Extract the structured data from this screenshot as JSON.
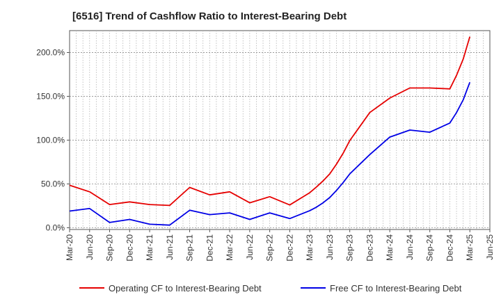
{
  "chart_data": {
    "type": "line",
    "title": "[6516]  Trend of Cashflow Ratio to Interest-Bearing Debt",
    "xlabel": "",
    "ylabel": "",
    "x_ticks": [
      "Mar-20",
      "Jun-20",
      "Sep-20",
      "Dec-20",
      "Mar-21",
      "Jun-21",
      "Sep-21",
      "Dec-21",
      "Mar-22",
      "Jun-22",
      "Sep-22",
      "Dec-22",
      "Mar-23",
      "Jun-23",
      "Sep-23",
      "Dec-23",
      "Mar-24",
      "Jun-24",
      "Sep-24",
      "Dec-24",
      "Mar-25",
      "Jun-25"
    ],
    "y_ticks": [
      0,
      50,
      100,
      150,
      200
    ],
    "y_tick_labels": [
      "0.0%",
      "50.0%",
      "100.0%",
      "150.0%",
      "200.0%"
    ],
    "ylim": [
      -2,
      225
    ],
    "grid": true,
    "legend": "bottom",
    "series": [
      {
        "name": "Operating CF to Interest-Bearing Debt",
        "color": "#e60000",
        "x": [
          "Mar-20",
          "Jun-20",
          "Sep-20",
          "Dec-20",
          "Mar-21",
          "Jun-21",
          "Sep-21",
          "Dec-21",
          "Mar-22",
          "Jun-22",
          "Sep-22",
          "Dec-22",
          "Mar-23",
          "Apr-23",
          "May-23",
          "Jun-23",
          "Jul-23",
          "Aug-23",
          "Sep-23",
          "Dec-23",
          "Mar-24",
          "Jun-24",
          "Sep-24",
          "Dec-24",
          "Jan-25",
          "Feb-25",
          "Mar-25"
        ],
        "values": [
          48.5,
          41.0,
          26.5,
          29.5,
          26.5,
          25.5,
          46.0,
          37.5,
          41.0,
          28.5,
          35.5,
          26.0,
          40.0,
          46.5,
          53.5,
          61.5,
          72.5,
          85.0,
          99.5,
          131.5,
          148.0,
          159.5,
          159.5,
          158.5,
          174.0,
          192.5,
          218.0
        ]
      },
      {
        "name": "Free CF to Interest-Bearing Debt",
        "color": "#0000e6",
        "x": [
          "Mar-20",
          "Jun-20",
          "Sep-20",
          "Dec-20",
          "Mar-21",
          "Jun-21",
          "Sep-21",
          "Dec-21",
          "Mar-22",
          "Jun-22",
          "Sep-22",
          "Dec-22",
          "Mar-23",
          "Apr-23",
          "May-23",
          "Jun-23",
          "Jul-23",
          "Aug-23",
          "Sep-23",
          "Dec-23",
          "Mar-24",
          "Jun-24",
          "Sep-24",
          "Dec-24",
          "Jan-25",
          "Feb-25",
          "Mar-25"
        ],
        "values": [
          19.0,
          22.0,
          6.0,
          9.5,
          4.0,
          3.0,
          20.0,
          15.0,
          17.0,
          9.5,
          17.0,
          10.5,
          19.5,
          23.5,
          28.5,
          34.5,
          42.5,
          51.5,
          61.5,
          83.5,
          103.5,
          111.5,
          109.0,
          119.5,
          131.5,
          146.0,
          166.0
        ]
      }
    ]
  }
}
